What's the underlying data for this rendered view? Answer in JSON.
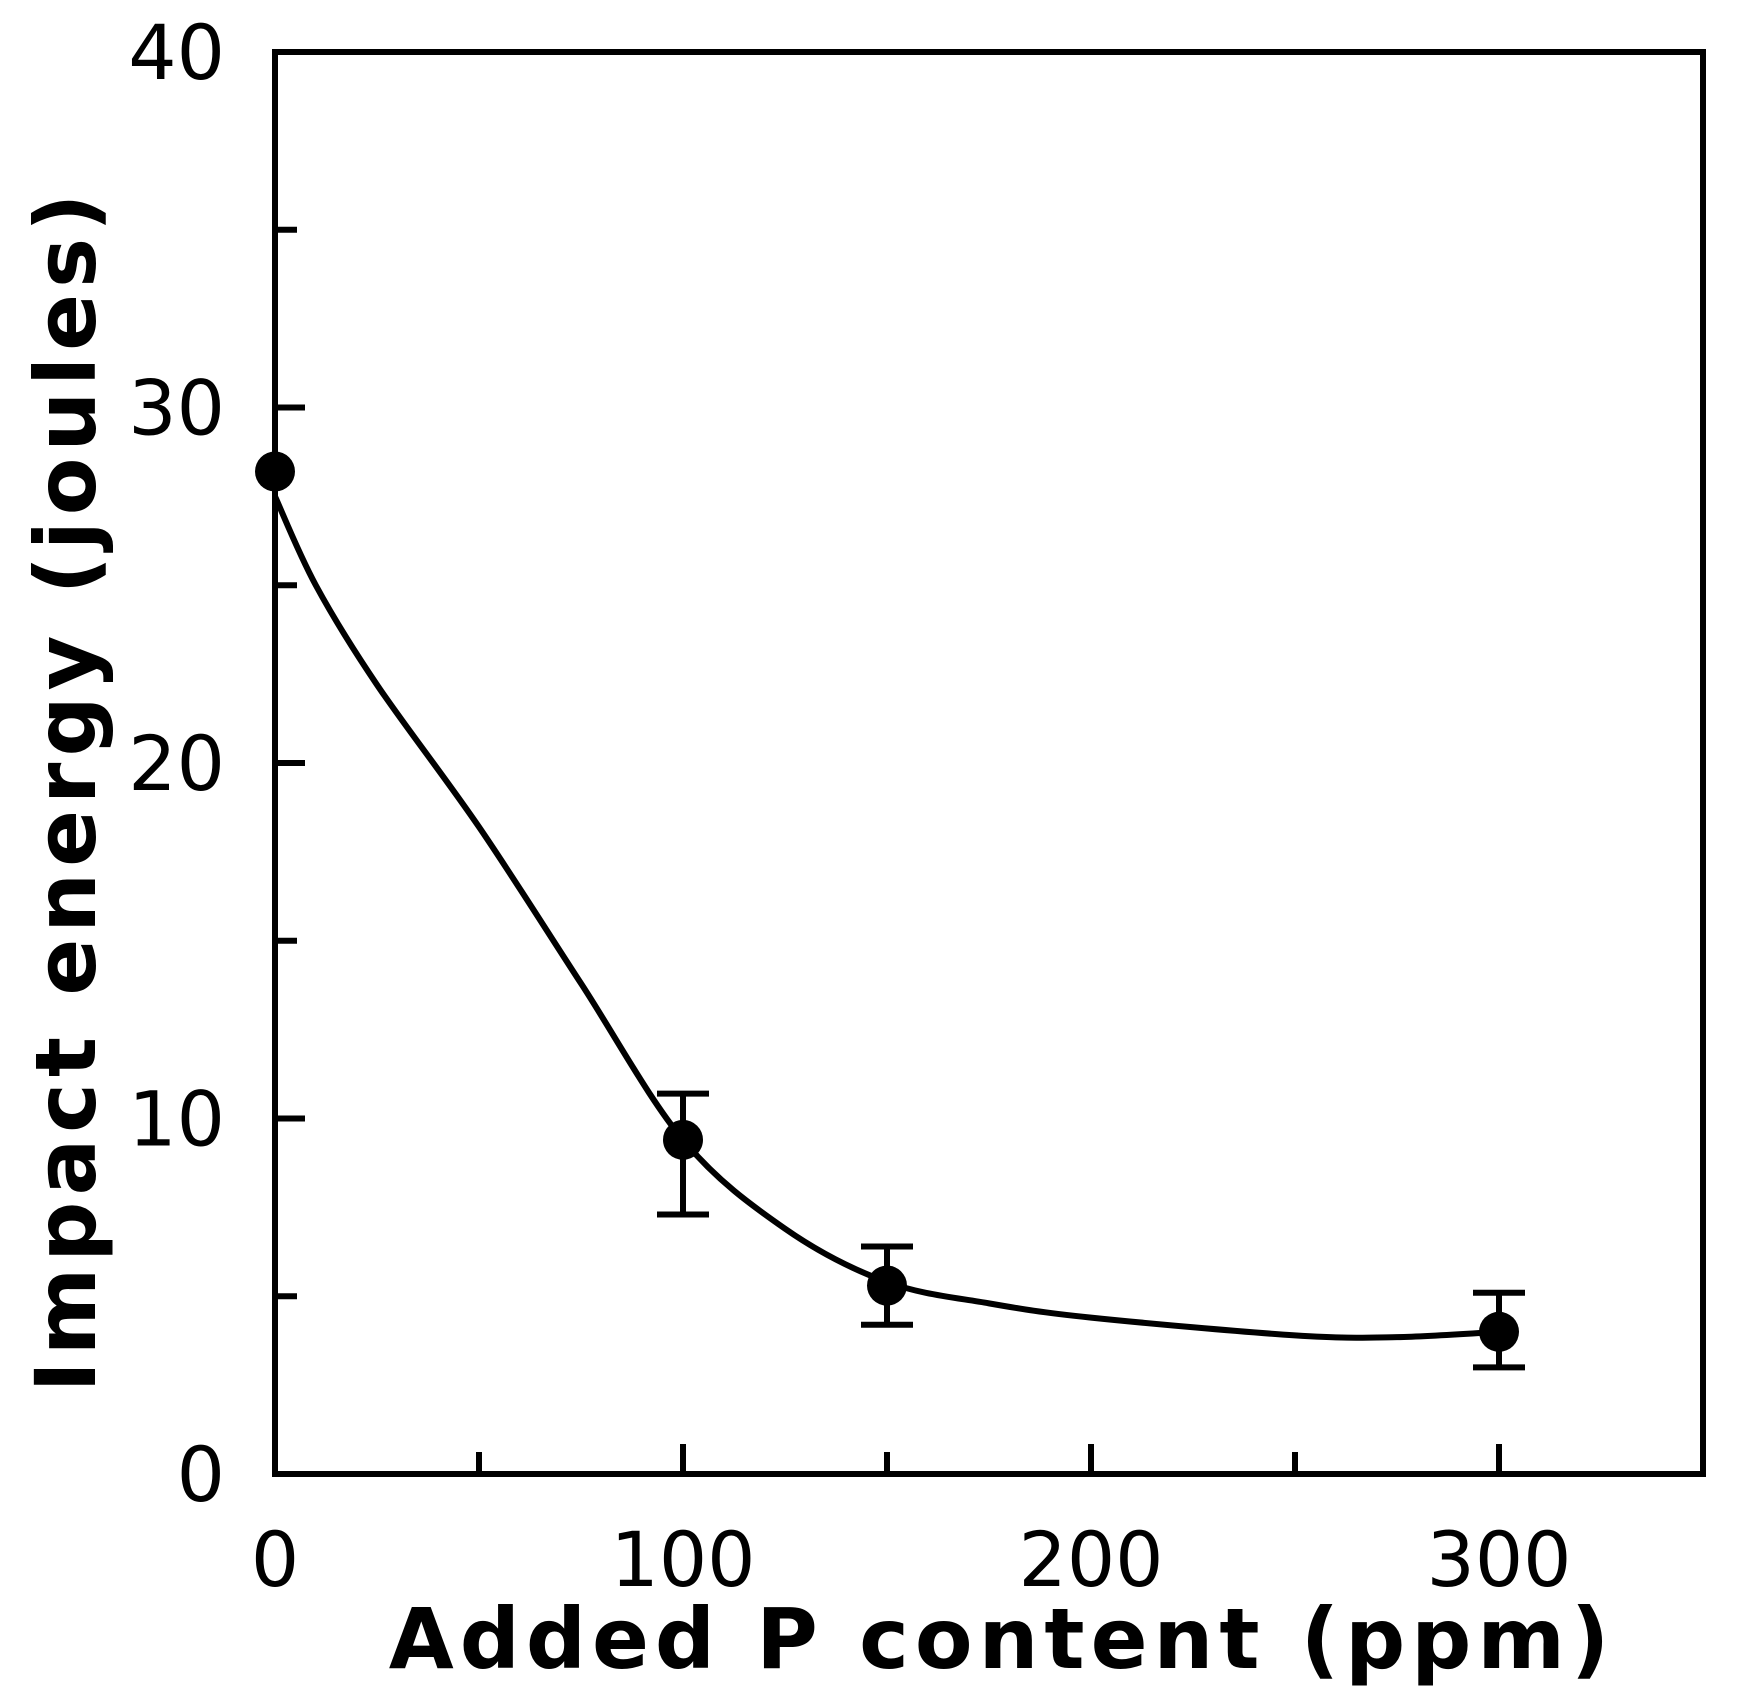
{
  "chart_data": {
    "type": "scatter",
    "title": "",
    "xlabel": "Added P content (ppm)",
    "ylabel": "Impact energy (joules)",
    "xlim": [
      0,
      350
    ],
    "ylim": [
      0,
      40
    ],
    "x_ticks_major": [
      0,
      100,
      200,
      300
    ],
    "x_ticks_minor": [
      50,
      150,
      250
    ],
    "y_ticks_major": [
      0,
      10,
      20,
      30,
      40
    ],
    "y_ticks_minor": [
      5,
      15,
      25,
      35
    ],
    "x_tick_labels": [
      "0",
      "100",
      "200",
      "300"
    ],
    "y_tick_labels": [
      "0",
      "10",
      "20",
      "30",
      "40"
    ],
    "grid": false,
    "legend": "none",
    "series": [
      {
        "points": [
          {
            "x": 0,
            "y": 28.2
          },
          {
            "x": 100,
            "y": 9.4,
            "err_low": 7.3,
            "err_high": 10.7
          },
          {
            "x": 150,
            "y": 5.3,
            "err_low": 4.2,
            "err_high": 6.4
          },
          {
            "x": 300,
            "y": 4.0,
            "err_low": 3.0,
            "err_high": 5.1
          }
        ],
        "color": "#000000",
        "marker": "filled-circle"
      }
    ],
    "fit_curve": {
      "x": [
        0,
        10,
        25,
        50,
        75,
        100,
        125,
        150,
        175,
        200,
        250,
        275,
        300
      ],
      "y": [
        27.5,
        25.0,
        22.2,
        18.2,
        13.8,
        9.4,
        6.9,
        5.4,
        4.8,
        4.4,
        3.9,
        3.85,
        4.0
      ]
    }
  }
}
